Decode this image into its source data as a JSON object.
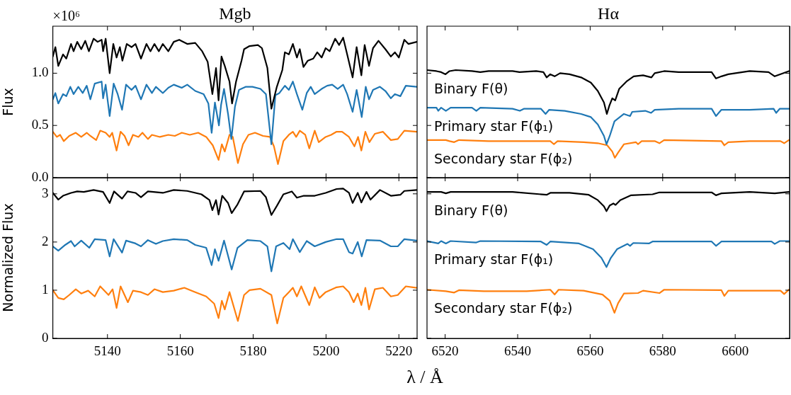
{
  "chart_data": [
    {
      "type": "line",
      "title": "Mgb",
      "ylabel": "Flux",
      "annotations": [
        "×10⁶"
      ],
      "xlim": [
        5125,
        5225
      ],
      "ylim": [
        0,
        1.45
      ],
      "xticks": [
        {
          "value": 5140,
          "label": null
        },
        {
          "value": 5160,
          "label": null
        },
        {
          "value": 5180,
          "label": null
        },
        {
          "value": 5200,
          "label": null
        },
        {
          "value": 5220,
          "label": null
        }
      ],
      "yticks": [
        {
          "value": 0,
          "label": "0.0"
        },
        {
          "value": 0.5,
          "label": "0.5"
        },
        {
          "value": 1,
          "label": "1.0"
        }
      ],
      "tick_labels": "y",
      "grid": false,
      "legend": false,
      "marker": "none",
      "series": [
        {
          "color": "#000000",
          "x": [
            5125,
            5125.7,
            5126.5,
            5127.8,
            5128.7,
            5130,
            5130.7,
            5131.7,
            5132.8,
            5133.9,
            5134.9,
            5136.2,
            5137.3,
            5138.4,
            5138.8,
            5139.5,
            5140.6,
            5141.6,
            5142.5,
            5143.4,
            5144.1,
            5145.3,
            5146.6,
            5147.7,
            5149.2,
            5150.7,
            5151.8,
            5152.9,
            5154.1,
            5155.2,
            5156.7,
            5158.2,
            5159.7,
            5161.9,
            5164.1,
            5166,
            5167.5,
            5168.8,
            5169.8,
            5170.5,
            5171.3,
            5172.2,
            5173.5,
            5174.2,
            5175.3,
            5176.8,
            5177.5,
            5179,
            5181.3,
            5182.4,
            5183.9,
            5185,
            5186.5,
            5188,
            5188.7,
            5189.8,
            5190.9,
            5192,
            5192.8,
            5193.8,
            5195,
            5196.5,
            5197.6,
            5198.8,
            5199.9,
            5201,
            5202.5,
            5203.6,
            5204.7,
            5205.8,
            5207.3,
            5208.4,
            5209.7,
            5210.6,
            5211.8,
            5212.9,
            5214.4,
            5216.3,
            5217.8,
            5218.9,
            5220,
            5221.5,
            5222.6,
            5224.9
          ],
          "values": [
            1.16,
            1.25,
            1.07,
            1.18,
            1.14,
            1.28,
            1.21,
            1.3,
            1.23,
            1.31,
            1.21,
            1.33,
            1.3,
            1.32,
            1.21,
            1.33,
            1.0,
            1.28,
            1.15,
            1.25,
            1.12,
            1.28,
            1.25,
            1.28,
            1.14,
            1.28,
            1.21,
            1.28,
            1.21,
            1.28,
            1.21,
            1.3,
            1.32,
            1.28,
            1.29,
            1.21,
            1.11,
            0.8,
            1.05,
            0.74,
            1.16,
            1.07,
            0.92,
            0.71,
            0.92,
            1.12,
            1.23,
            1.26,
            1.27,
            1.24,
            1.05,
            0.66,
            0.87,
            1.03,
            1.2,
            1.18,
            1.28,
            1.15,
            1.23,
            1.06,
            1.12,
            1.14,
            1.2,
            1.15,
            1.24,
            1.21,
            1.33,
            1.27,
            1.34,
            1.18,
            0.96,
            1.25,
            0.98,
            1.27,
            1.07,
            1.24,
            1.31,
            1.23,
            1.16,
            1.2,
            1.15,
            1.32,
            1.28,
            1.3
          ]
        },
        {
          "color": "#1f77b4",
          "x": [
            5125,
            5125.7,
            5126.5,
            5127.8,
            5128.7,
            5129.8,
            5130.7,
            5132,
            5133.2,
            5134.3,
            5135.3,
            5136.5,
            5138.4,
            5138.8,
            5139.5,
            5140.6,
            5141.7,
            5142.8,
            5144,
            5145.1,
            5146.6,
            5147.7,
            5149.2,
            5150.7,
            5152.2,
            5153.3,
            5155.2,
            5156.7,
            5158.2,
            5160.4,
            5161.9,
            5164.1,
            5166.4,
            5167.7,
            5168.6,
            5169.5,
            5170.6,
            5171.2,
            5172,
            5173.1,
            5174,
            5175,
            5176.1,
            5178,
            5179.8,
            5182,
            5183.5,
            5185,
            5186.1,
            5187.2,
            5188.7,
            5189.8,
            5190.9,
            5192,
            5193.5,
            5194.7,
            5195.8,
            5196.9,
            5198.8,
            5200.3,
            5201.7,
            5203.2,
            5204.7,
            5205.8,
            5207.3,
            5208.4,
            5209.8,
            5210.9,
            5211.8,
            5212.9,
            5214.8,
            5216.3,
            5217.8,
            5218.9,
            5220.4,
            5221.9,
            5224.9
          ],
          "values": [
            0.75,
            0.81,
            0.71,
            0.8,
            0.78,
            0.87,
            0.8,
            0.87,
            0.81,
            0.88,
            0.75,
            0.9,
            0.92,
            0.76,
            0.89,
            0.59,
            0.9,
            0.8,
            0.65,
            0.89,
            0.84,
            0.88,
            0.75,
            0.89,
            0.81,
            0.87,
            0.81,
            0.86,
            0.89,
            0.86,
            0.89,
            0.83,
            0.8,
            0.71,
            0.43,
            0.72,
            0.5,
            0.7,
            0.85,
            0.61,
            0.37,
            0.68,
            0.84,
            0.87,
            0.87,
            0.85,
            0.8,
            0.32,
            0.79,
            0.81,
            0.88,
            0.84,
            0.92,
            0.8,
            0.65,
            0.81,
            0.87,
            0.8,
            0.85,
            0.88,
            0.89,
            0.85,
            0.89,
            0.8,
            0.63,
            0.84,
            0.58,
            0.87,
            0.75,
            0.84,
            0.87,
            0.83,
            0.76,
            0.8,
            0.78,
            0.88,
            0.87
          ]
        },
        {
          "color": "#ff7f0e",
          "x": [
            5125,
            5126.1,
            5127,
            5128,
            5129.5,
            5131.3,
            5132.8,
            5134.3,
            5135.3,
            5136.9,
            5138,
            5139.5,
            5140.6,
            5141.3,
            5142.5,
            5143.6,
            5144.7,
            5145.8,
            5147,
            5148.5,
            5149.6,
            5151.1,
            5152.2,
            5154.4,
            5156.7,
            5158.5,
            5160.4,
            5162.6,
            5164.9,
            5167.1,
            5168.9,
            5170.5,
            5171.4,
            5172.2,
            5173.5,
            5174.4,
            5175.8,
            5177.2,
            5178.7,
            5180.5,
            5182.7,
            5184.6,
            5185.7,
            5186.8,
            5188.3,
            5189.8,
            5190.9,
            5191.8,
            5192.8,
            5194.3,
            5195.4,
            5196.9,
            5198,
            5199.9,
            5201.4,
            5202.9,
            5204.4,
            5206.3,
            5207.8,
            5208.8,
            5209.7,
            5210.8,
            5211.9,
            5213.4,
            5215.6,
            5217.8,
            5219.7,
            5221.5,
            5224.9
          ],
          "values": [
            0.44,
            0.39,
            0.41,
            0.35,
            0.4,
            0.43,
            0.39,
            0.43,
            0.4,
            0.36,
            0.45,
            0.43,
            0.39,
            0.43,
            0.26,
            0.44,
            0.4,
            0.31,
            0.41,
            0.39,
            0.43,
            0.37,
            0.41,
            0.39,
            0.41,
            0.4,
            0.43,
            0.41,
            0.43,
            0.39,
            0.31,
            0.17,
            0.32,
            0.25,
            0.41,
            0.39,
            0.14,
            0.32,
            0.41,
            0.43,
            0.4,
            0.39,
            0.3,
            0.13,
            0.35,
            0.41,
            0.44,
            0.39,
            0.45,
            0.41,
            0.28,
            0.45,
            0.34,
            0.39,
            0.41,
            0.44,
            0.44,
            0.39,
            0.3,
            0.39,
            0.26,
            0.44,
            0.34,
            0.42,
            0.44,
            0.36,
            0.37,
            0.45,
            0.44
          ]
        }
      ]
    },
    {
      "type": "line",
      "title": "Hα",
      "xlim": [
        6515,
        6615
      ],
      "ylim": [
        0,
        1.45
      ],
      "xticks": [
        {
          "value": 6520,
          "label": null
        },
        {
          "value": 6540,
          "label": null
        },
        {
          "value": 6560,
          "label": null
        },
        {
          "value": 6580,
          "label": null
        },
        {
          "value": 6600,
          "label": null
        }
      ],
      "yticks": [
        {
          "value": 0,
          "label": null
        },
        {
          "value": 0.5,
          "label": null
        },
        {
          "value": 1,
          "label": null
        }
      ],
      "tick_labels": false,
      "grid": false,
      "legend": false,
      "marker": "none",
      "series": [
        {
          "name": "Binary F(θ)",
          "color": "#000000",
          "x": [
            6515,
            6517.6,
            6518.9,
            6520.1,
            6521.2,
            6522.9,
            6527.4,
            6529.7,
            6532,
            6538.6,
            6540.5,
            6545.1,
            6547.1,
            6548,
            6549,
            6550.2,
            6551.7,
            6554.3,
            6557.5,
            6560.2,
            6562.1,
            6563.8,
            6564.6,
            6565.3,
            6566.1,
            6566.9,
            6568,
            6570,
            6572,
            6574.6,
            6576.9,
            6577.8,
            6580.4,
            6584.4,
            6588.3,
            6593.5,
            6594.7,
            6596.2,
            6598.1,
            6604,
            6609.2,
            6610.9,
            6613.2,
            6614.8
          ],
          "values": [
            1.03,
            1.02,
            1.01,
            0.99,
            1.02,
            1.03,
            1.02,
            1.01,
            1.02,
            1.02,
            1.01,
            1.02,
            1.01,
            0.96,
            0.99,
            0.97,
            1.0,
            0.99,
            0.96,
            0.91,
            0.83,
            0.72,
            0.61,
            0.69,
            0.76,
            0.74,
            0.85,
            0.92,
            0.97,
            0.98,
            0.96,
            1.0,
            1.02,
            1.01,
            1.01,
            1.01,
            0.95,
            0.97,
            0.99,
            1.02,
            1.01,
            0.97,
            1.0,
            1.02
          ]
        },
        {
          "name": "Primary star F(ϕ₁)",
          "color": "#1f77b4",
          "x": [
            6515,
            6517.6,
            6518.1,
            6518.9,
            6520.2,
            6521.5,
            6527.4,
            6528.6,
            6529.7,
            6538.6,
            6540.6,
            6541.8,
            6546.4,
            6547.7,
            6548.7,
            6553,
            6557.5,
            6560.2,
            6562.1,
            6563.8,
            6564.5,
            6565.4,
            6566.7,
            6569.3,
            6571,
            6571.6,
            6575.2,
            6576.8,
            6577.8,
            6584.4,
            6593.5,
            6594.7,
            6596.2,
            6604,
            6610.6,
            6611.3,
            6612.3,
            6614.8
          ],
          "values": [
            0.67,
            0.67,
            0.64,
            0.67,
            0.64,
            0.67,
            0.67,
            0.64,
            0.67,
            0.66,
            0.64,
            0.66,
            0.66,
            0.61,
            0.65,
            0.64,
            0.61,
            0.58,
            0.51,
            0.4,
            0.32,
            0.4,
            0.54,
            0.61,
            0.59,
            0.63,
            0.64,
            0.62,
            0.65,
            0.66,
            0.66,
            0.59,
            0.65,
            0.65,
            0.66,
            0.62,
            0.66,
            0.66
          ]
        },
        {
          "name": "Secondary star F(ϕ₂)",
          "color": "#ff7f0e",
          "x": [
            6515,
            6520.2,
            6521.2,
            6522.5,
            6523.8,
            6532,
            6539.9,
            6543.8,
            6549,
            6550,
            6551,
            6558.2,
            6562.1,
            6564.7,
            6566.1,
            6566.8,
            6567.7,
            6569.3,
            6572.6,
            6573.2,
            6574.2,
            6577.8,
            6579.1,
            6580.4,
            6596.2,
            6597,
            6598.1,
            6604,
            6612.5,
            6613.5,
            6614.8
          ],
          "values": [
            0.36,
            0.36,
            0.35,
            0.34,
            0.36,
            0.35,
            0.35,
            0.35,
            0.35,
            0.32,
            0.35,
            0.34,
            0.33,
            0.31,
            0.25,
            0.19,
            0.24,
            0.32,
            0.34,
            0.32,
            0.35,
            0.35,
            0.33,
            0.36,
            0.35,
            0.31,
            0.34,
            0.35,
            0.35,
            0.33,
            0.36
          ]
        }
      ]
    },
    {
      "type": "line",
      "ylabel": "Normalized Flux",
      "xlabel": "λ / Å",
      "xlim": [
        5125,
        5225
      ],
      "ylim": [
        0,
        3.35
      ],
      "xticks": [
        5140,
        5160,
        5180,
        5200,
        5220
      ],
      "yticks": [
        0,
        1,
        2,
        3
      ],
      "grid": false,
      "legend": false,
      "marker": "none",
      "series": [
        {
          "color": "#000000",
          "x": [
            5125,
            5126.5,
            5127.8,
            5130,
            5131.7,
            5133.5,
            5136.2,
            5138.8,
            5140.6,
            5141.8,
            5144,
            5145.5,
            5147.7,
            5149.2,
            5151.1,
            5155.2,
            5158.2,
            5161.9,
            5165.8,
            5168,
            5168.8,
            5169.8,
            5170.5,
            5171.5,
            5173.1,
            5174.1,
            5175.7,
            5177.5,
            5182,
            5183.5,
            5185,
            5186.5,
            5188.3,
            5190.6,
            5192,
            5193.9,
            5196.9,
            5199.9,
            5202.9,
            5204.7,
            5206.3,
            5207.3,
            5208.7,
            5209.7,
            5211.1,
            5212.2,
            5214.8,
            5217.8,
            5220.4,
            5221.5,
            5224.9
          ],
          "values": [
            3.02,
            2.88,
            2.96,
            3.02,
            3.05,
            3.04,
            3.08,
            3.04,
            2.81,
            3.05,
            2.9,
            3.05,
            3.02,
            2.93,
            3.05,
            3.02,
            3.08,
            3.06,
            2.99,
            2.87,
            2.66,
            2.87,
            2.57,
            2.96,
            2.81,
            2.6,
            2.78,
            3.05,
            3.06,
            2.93,
            2.56,
            2.75,
            2.99,
            3.05,
            2.92,
            2.96,
            2.96,
            3.02,
            3.1,
            3.11,
            3.02,
            2.81,
            3.02,
            2.82,
            3.04,
            2.88,
            3.08,
            2.96,
            2.98,
            3.06,
            3.08
          ]
        },
        {
          "color": "#1f77b4",
          "x": [
            5125,
            5126.5,
            5128.4,
            5130,
            5131,
            5132.8,
            5135,
            5136.5,
            5139.5,
            5140.6,
            5141.7,
            5144,
            5145.1,
            5147.7,
            5149.2,
            5151.1,
            5153.3,
            5155.2,
            5158.2,
            5161.9,
            5164.1,
            5167.1,
            5168.6,
            5169.5,
            5170.5,
            5172,
            5174.1,
            5175.7,
            5178.4,
            5182,
            5183.9,
            5185,
            5186.3,
            5188.3,
            5190,
            5190.9,
            5192.8,
            5194.7,
            5196.9,
            5199.9,
            5202.9,
            5204.7,
            5206.3,
            5207.3,
            5208.7,
            5209.8,
            5211.1,
            5214.8,
            5217.8,
            5219.7,
            5221.5,
            5224.9
          ],
          "values": [
            1.91,
            1.82,
            1.94,
            2.02,
            1.91,
            2.03,
            1.88,
            2.06,
            2.04,
            1.7,
            2.06,
            1.78,
            2.03,
            1.97,
            1.91,
            2.04,
            1.96,
            2.02,
            2.06,
            2.04,
            1.94,
            1.88,
            1.52,
            1.85,
            1.61,
            2.03,
            1.43,
            1.88,
            2.04,
            2.02,
            1.91,
            1.39,
            1.91,
            1.98,
            1.85,
            2.06,
            1.79,
            2.02,
            1.91,
            2.0,
            2.06,
            2.06,
            1.79,
            1.76,
            2.0,
            1.7,
            2.04,
            2.03,
            1.91,
            1.91,
            2.06,
            2.03
          ]
        },
        {
          "color": "#ff7f0e",
          "x": [
            5125,
            5126.5,
            5128,
            5129.5,
            5131.3,
            5132.8,
            5134.7,
            5136.5,
            5138,
            5140.3,
            5141.4,
            5142.5,
            5143.6,
            5145.6,
            5147,
            5149.2,
            5151.1,
            5152.9,
            5155.2,
            5158.2,
            5161.1,
            5164.1,
            5167.1,
            5169.3,
            5170.5,
            5171.4,
            5172.2,
            5173.5,
            5175.8,
            5177.5,
            5179,
            5182,
            5185,
            5186.6,
            5188.3,
            5189.8,
            5190.9,
            5192,
            5193.2,
            5195.4,
            5196.9,
            5198.2,
            5199.9,
            5202.9,
            5204.7,
            5206.3,
            5207.6,
            5208.7,
            5209.7,
            5210.8,
            5211.8,
            5213.4,
            5215.6,
            5217.8,
            5219.7,
            5221.9,
            5224.9
          ],
          "values": [
            1.0,
            0.84,
            0.81,
            0.9,
            1.02,
            0.93,
            0.99,
            0.87,
            1.08,
            0.9,
            1.02,
            0.63,
            1.08,
            0.75,
            0.99,
            0.96,
            0.9,
            1.02,
            0.96,
            0.99,
            1.05,
            0.96,
            0.87,
            0.72,
            0.42,
            0.78,
            0.6,
            0.96,
            0.36,
            0.9,
            1.0,
            1.03,
            0.9,
            0.31,
            0.84,
            0.96,
            1.05,
            0.87,
            1.08,
            0.69,
            1.06,
            0.84,
            0.96,
            1.06,
            1.08,
            0.96,
            0.75,
            0.93,
            0.69,
            1.05,
            0.6,
            1.02,
            1.05,
            0.87,
            0.9,
            1.08,
            1.05
          ]
        }
      ]
    },
    {
      "type": "line",
      "xlim": [
        6515,
        6615
      ],
      "ylim": [
        0,
        3.35
      ],
      "xticks": [
        6520,
        6540,
        6560,
        6580,
        6600
      ],
      "yticks": [
        {
          "value": 0,
          "label": null
        },
        {
          "value": 1,
          "label": null
        },
        {
          "value": 2,
          "label": null
        },
        {
          "value": 3,
          "label": null
        }
      ],
      "tick_labels": "x",
      "grid": false,
      "legend": false,
      "marker": "none",
      "series": [
        {
          "name": "Binary F(θ)",
          "color": "#000000",
          "x": [
            6515,
            6518.9,
            6520.2,
            6521.5,
            6538.6,
            6548,
            6549,
            6554.3,
            6559.6,
            6562.1,
            6563.8,
            6564.5,
            6565.4,
            6566.4,
            6567,
            6568.3,
            6571.3,
            6577.2,
            6579.1,
            6593.5,
            6594.7,
            6596.2,
            6604,
            6610.9,
            6614.8
          ],
          "values": [
            3.04,
            3.04,
            3.01,
            3.04,
            3.04,
            2.98,
            3.02,
            3.02,
            2.98,
            2.87,
            2.74,
            2.64,
            2.76,
            2.8,
            2.77,
            2.87,
            2.97,
            2.99,
            3.03,
            3.03,
            2.97,
            3.01,
            3.04,
            3.01,
            3.04
          ]
        },
        {
          "name": "Primary star F(ϕ₁)",
          "color": "#1f77b4",
          "x": [
            6515,
            6518.1,
            6518.9,
            6520.2,
            6521.5,
            6528.6,
            6529.7,
            6546.4,
            6548,
            6549,
            6556.9,
            6560.8,
            6563.1,
            6564.5,
            6565.7,
            6567.4,
            6570.3,
            6571,
            6571.9,
            6576.2,
            6577.2,
            6593.5,
            6594.7,
            6596.2,
            6610,
            6610.9,
            6612.3,
            6614.8
          ],
          "values": [
            2.02,
            1.97,
            2.02,
            1.97,
            2.02,
            1.99,
            2.02,
            2.01,
            1.94,
            2.01,
            1.97,
            1.85,
            1.67,
            1.48,
            1.67,
            1.85,
            1.96,
            1.92,
            1.98,
            1.97,
            2.01,
            2.01,
            1.92,
            2.01,
            2.01,
            1.96,
            2.02,
            2.02
          ]
        },
        {
          "name": "Secondary star F(ϕ₂)",
          "color": "#ff7f0e",
          "x": [
            6515,
            6520.2,
            6522.5,
            6523.8,
            6530.7,
            6542.5,
            6549,
            6550.2,
            6551.3,
            6558.2,
            6563.4,
            6565.4,
            6566.7,
            6567.7,
            6569.3,
            6573.2,
            6574.6,
            6579.1,
            6580.4,
            6596.2,
            6597,
            6598.1,
            6612.5,
            6613.5,
            6614.8
          ],
          "values": [
            1.01,
            0.98,
            0.95,
            1.0,
            0.98,
            0.98,
            1.01,
            0.91,
            1.01,
            0.99,
            0.91,
            0.78,
            0.53,
            0.73,
            0.93,
            0.94,
            0.99,
            0.94,
            1.01,
            1.0,
            0.88,
            0.99,
            0.99,
            0.92,
            1.01
          ]
        }
      ]
    }
  ]
}
